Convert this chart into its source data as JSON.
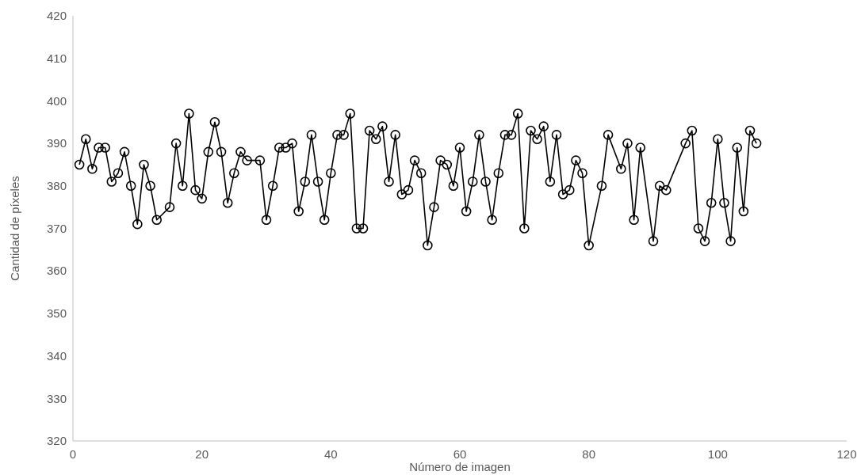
{
  "chart_data": {
    "type": "line",
    "xlabel": "Número de imagen",
    "ylabel": "Cantidad de píxeles",
    "x": [
      1,
      2,
      3,
      4,
      5,
      6,
      7,
      8,
      9,
      10,
      11,
      12,
      13,
      15,
      16,
      17,
      18,
      19,
      20,
      21,
      22,
      23,
      24,
      25,
      26,
      27,
      29,
      30,
      31,
      32,
      33,
      34,
      35,
      36,
      37,
      38,
      39,
      40,
      41,
      42,
      43,
      44,
      45,
      46,
      47,
      48,
      49,
      50,
      51,
      52,
      53,
      54,
      55,
      56,
      57,
      58,
      59,
      60,
      61,
      62,
      63,
      64,
      65,
      66,
      67,
      68,
      69,
      70,
      71,
      72,
      73,
      74,
      75,
      76,
      77,
      78,
      79,
      80,
      82,
      83,
      85,
      86,
      87,
      88,
      90,
      91,
      92,
      95,
      96,
      97,
      98,
      99,
      100,
      101,
      102,
      103,
      104,
      105,
      106
    ],
    "series": [
      {
        "color": "#000000",
        "values": [
          385,
          391,
          384,
          389,
          389,
          381,
          383,
          388,
          380,
          371,
          385,
          380,
          372,
          375,
          390,
          380,
          397,
          379,
          377,
          388,
          395,
          388,
          376,
          383,
          388,
          386,
          386,
          372,
          380,
          389,
          389,
          390,
          374,
          381,
          392,
          381,
          372,
          383,
          392,
          392,
          397,
          370,
          370,
          393,
          391,
          394,
          381,
          392,
          378,
          379,
          386,
          383,
          366,
          375,
          386,
          385,
          380,
          389,
          374,
          381,
          392,
          381,
          372,
          383,
          392,
          392,
          397,
          370,
          393,
          391,
          394,
          381,
          392,
          378,
          379,
          386,
          383,
          366,
          380,
          392,
          384,
          390,
          372,
          389,
          367,
          380,
          379,
          390,
          393,
          370,
          367,
          376,
          391,
          376,
          367,
          389,
          374,
          393,
          390
        ]
      }
    ],
    "xlim": [
      0,
      120
    ],
    "xticks": [
      0,
      20,
      40,
      60,
      80,
      100,
      120
    ],
    "ylim": [
      320,
      420
    ],
    "yticks": [
      320,
      330,
      340,
      350,
      360,
      370,
      380,
      390,
      400,
      410,
      420
    ],
    "grid": false,
    "marker": "circle",
    "line_style": "solid"
  }
}
